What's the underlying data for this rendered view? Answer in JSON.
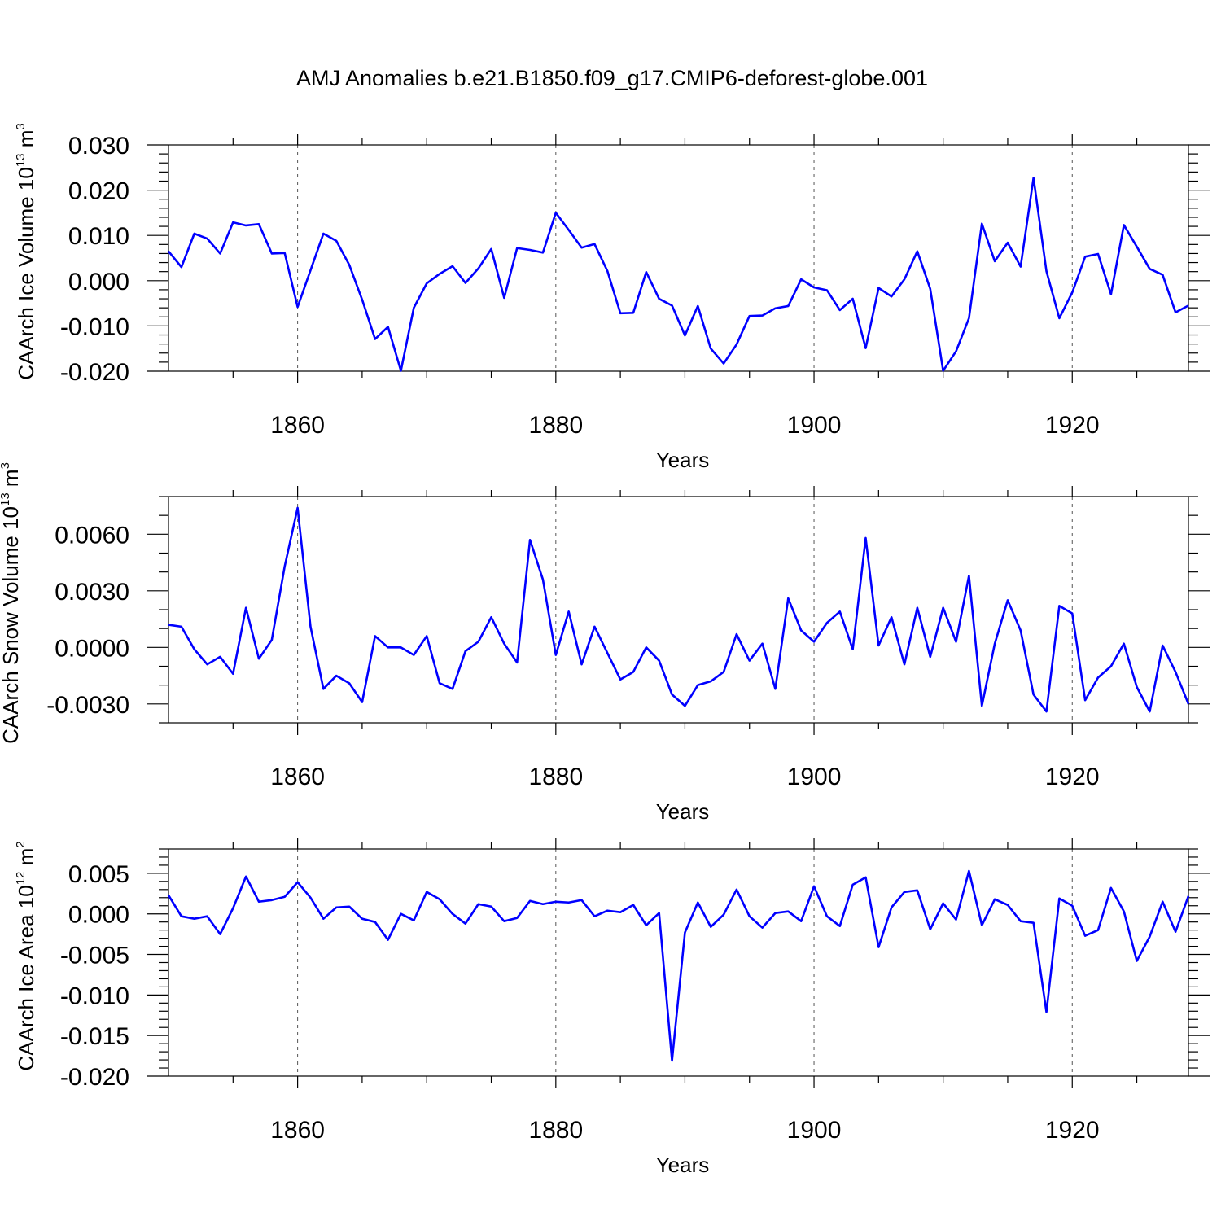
{
  "figure_title": "AMJ Anomalies b.e21.B1850.f09_g17.CMIP6-deforest-globe.001",
  "colors": {
    "series": "#0000ff",
    "axes": "#000000",
    "grid": "#555555"
  },
  "chart_data": [
    {
      "type": "line",
      "title": "AMJ Anomalies b.e21.B1850.f09_g17.CMIP6-deforest-globe.001",
      "ylabel": "CAArch Ice Volume 10",
      "ylabel_exp": "13",
      "ylabel_unit": "m",
      "ylabel_unit_exp": "3",
      "xlabel": "Years",
      "xlim": [
        1850,
        1929
      ],
      "ylim": [
        -0.02,
        0.03
      ],
      "yticks": [
        -0.02,
        -0.01,
        0.0,
        0.01,
        0.02,
        0.03
      ],
      "ytick_labels": [
        "-0.020",
        "-0.010",
        "0.000",
        "0.010",
        "0.020",
        "0.030"
      ],
      "yminor": [
        -0.018,
        -0.016,
        -0.014,
        -0.012,
        -0.008,
        -0.006,
        -0.004,
        -0.002,
        0.002,
        0.004,
        0.006,
        0.008,
        0.012,
        0.014,
        0.016,
        0.018,
        0.022,
        0.024,
        0.026,
        0.028
      ],
      "xticks": [
        1860,
        1880,
        1900,
        1920
      ],
      "xtick_labels": [
        "1860",
        "1880",
        "1900",
        "1920"
      ],
      "xminor": [
        1855,
        1865,
        1870,
        1875,
        1885,
        1890,
        1895,
        1905,
        1910,
        1915,
        1925
      ],
      "grid_x": [
        1860,
        1880,
        1900,
        1920
      ],
      "x_start": 1850,
      "values": [
        0.0065,
        0.003,
        0.0104,
        0.0093,
        0.006,
        0.0129,
        0.0122,
        0.0125,
        0.006,
        0.0061,
        -0.0058,
        0.0023,
        0.0104,
        0.0088,
        0.0035,
        -0.0042,
        -0.0129,
        -0.0102,
        -0.0199,
        -0.006,
        -0.0006,
        0.0015,
        0.0032,
        -0.0005,
        0.0027,
        0.007,
        -0.0038,
        0.0072,
        0.0068,
        0.0062,
        0.015,
        0.0112,
        0.0073,
        0.0081,
        0.0021,
        -0.0072,
        -0.0071,
        0.0019,
        -0.004,
        -0.0055,
        -0.0121,
        -0.0056,
        -0.015,
        -0.0183,
        -0.0141,
        -0.0078,
        -0.0077,
        -0.0061,
        -0.0056,
        0.0003,
        -0.0015,
        -0.0021,
        -0.0065,
        -0.004,
        -0.0149,
        -0.0016,
        -0.0035,
        0.0003,
        0.0065,
        -0.0018,
        -0.0199,
        -0.0156,
        -0.0083,
        0.0126,
        0.0043,
        0.0084,
        0.0031,
        0.0227,
        0.0021,
        -0.0083,
        -0.0026,
        0.0053,
        0.0059,
        -0.003,
        0.0123,
        0.0075,
        0.0026,
        0.0013,
        -0.007,
        -0.0055
      ]
    },
    {
      "type": "line",
      "ylabel": "CAArch Snow Volume 10",
      "ylabel_exp": "13",
      "ylabel_unit": "m",
      "ylabel_unit_exp": "3",
      "xlabel": "Years",
      "xlim": [
        1850,
        1929
      ],
      "ylim": [
        -0.004,
        0.008
      ],
      "yticks": [
        -0.003,
        0.0,
        0.003,
        0.006
      ],
      "ytick_labels": [
        "-0.0030",
        "0.0000",
        "0.0030",
        "0.0060"
      ],
      "yminor": [
        -0.004,
        -0.002,
        -0.001,
        0.001,
        0.002,
        0.004,
        0.005,
        0.007,
        0.008
      ],
      "xticks": [
        1860,
        1880,
        1900,
        1920
      ],
      "xtick_labels": [
        "1860",
        "1880",
        "1900",
        "1920"
      ],
      "xminor": [
        1855,
        1865,
        1870,
        1875,
        1885,
        1890,
        1895,
        1905,
        1910,
        1915,
        1925
      ],
      "grid_x": [
        1860,
        1880,
        1900,
        1920
      ],
      "x_start": 1850,
      "values": [
        0.0012,
        0.0011,
        -0.0001,
        -0.0009,
        -0.0005,
        -0.0014,
        0.0021,
        -0.0006,
        0.0004,
        0.0043,
        0.0074,
        0.0011,
        -0.0022,
        -0.0015,
        -0.0019,
        -0.0029,
        0.0006,
        0.0,
        0.0,
        -0.0004,
        0.0006,
        -0.0019,
        -0.0022,
        -0.0002,
        0.0003,
        0.0016,
        0.0002,
        -0.0008,
        0.0057,
        0.0036,
        -0.0004,
        0.0019,
        -0.0009,
        0.0011,
        -0.0003,
        -0.0017,
        -0.0013,
        0.0,
        -0.0007,
        -0.0025,
        -0.0031,
        -0.002,
        -0.0018,
        -0.0013,
        0.0007,
        -0.0007,
        0.0002,
        -0.0022,
        0.0026,
        0.0009,
        0.0003,
        0.0013,
        0.0019,
        -0.0001,
        0.0058,
        0.0001,
        0.0016,
        -0.0009,
        0.0021,
        -0.0005,
        0.0021,
        0.0003,
        0.0038,
        -0.0031,
        0.0002,
        0.0025,
        0.0009,
        -0.0025,
        -0.0034,
        0.0022,
        0.0018,
        -0.0028,
        -0.0016,
        -0.001,
        0.0002,
        -0.0021,
        -0.0034,
        0.0001,
        -0.0013,
        -0.003
      ]
    },
    {
      "type": "line",
      "ylabel": "CAArch Ice Area 10",
      "ylabel_exp": "12",
      "ylabel_unit": "m",
      "ylabel_unit_exp": "2",
      "xlabel": "Years",
      "xlim": [
        1850,
        1929
      ],
      "ylim": [
        -0.02,
        0.008
      ],
      "yticks": [
        -0.02,
        -0.015,
        -0.01,
        -0.005,
        0.0,
        0.005
      ],
      "ytick_labels": [
        "-0.020",
        "-0.015",
        "-0.010",
        "-0.005",
        "0.000",
        "0.005"
      ],
      "yminor": [
        -0.019,
        -0.018,
        -0.017,
        -0.016,
        -0.014,
        -0.013,
        -0.012,
        -0.011,
        -0.009,
        -0.008,
        -0.007,
        -0.006,
        -0.004,
        -0.003,
        -0.002,
        -0.001,
        0.001,
        0.002,
        0.003,
        0.004,
        0.006,
        0.007,
        0.008
      ],
      "xticks": [
        1860,
        1880,
        1900,
        1920
      ],
      "xtick_labels": [
        "1860",
        "1880",
        "1900",
        "1920"
      ],
      "xminor": [
        1855,
        1865,
        1870,
        1875,
        1885,
        1890,
        1895,
        1905,
        1910,
        1915,
        1925
      ],
      "grid_x": [
        1860,
        1880,
        1900,
        1920
      ],
      "x_start": 1850,
      "values": [
        0.0023,
        -0.0003,
        -0.0006,
        -0.0003,
        -0.0025,
        0.0007,
        0.0046,
        0.0015,
        0.0017,
        0.0021,
        0.0039,
        0.002,
        -0.0006,
        0.0008,
        0.0009,
        -0.0006,
        -0.001,
        -0.0032,
        0.0,
        -0.0008,
        0.0027,
        0.0018,
        0.0,
        -0.0012,
        0.0012,
        0.0009,
        -0.0009,
        -0.0005,
        0.0016,
        0.0012,
        0.0015,
        0.0014,
        0.0017,
        -0.0003,
        0.0004,
        0.0002,
        0.0011,
        -0.0014,
        0.0001,
        -0.0181,
        -0.0023,
        0.0014,
        -0.0016,
        -0.0001,
        0.003,
        -0.0003,
        -0.0017,
        0.0001,
        0.0003,
        -0.0009,
        0.0034,
        -0.0003,
        -0.0015,
        0.0036,
        0.0045,
        -0.0041,
        0.0008,
        0.0027,
        0.0029,
        -0.0019,
        0.0013,
        -0.0007,
        0.0053,
        -0.0014,
        0.0018,
        0.0011,
        -0.0009,
        -0.0011,
        -0.0121,
        0.0019,
        0.001,
        -0.0027,
        -0.002,
        0.0032,
        0.0003,
        -0.0058,
        -0.0028,
        0.0015,
        -0.0022,
        0.0022
      ]
    }
  ]
}
